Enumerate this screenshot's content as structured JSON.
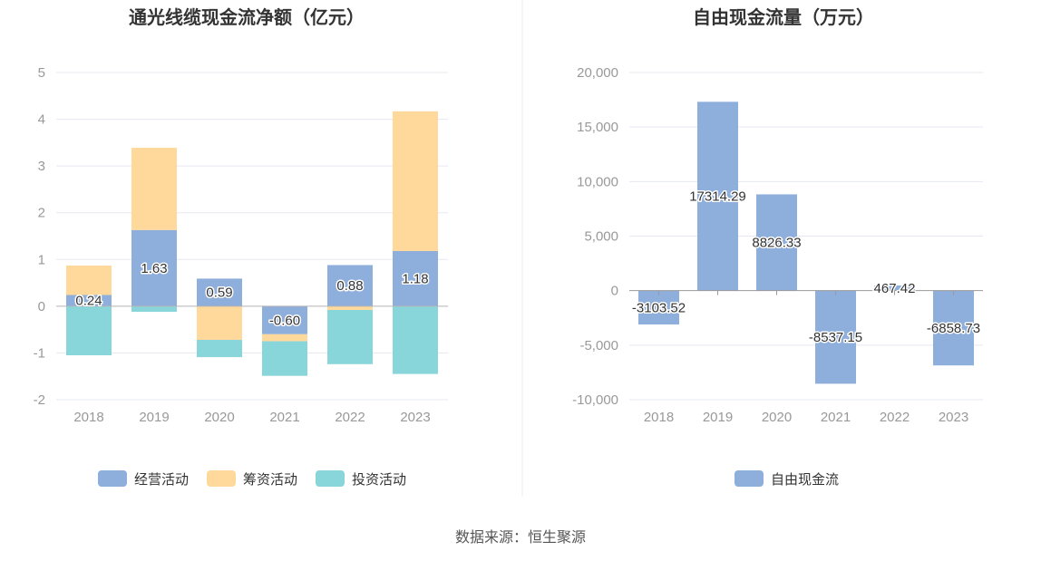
{
  "source": "数据来源：恒生聚源",
  "chart_data": [
    {
      "type": "bar",
      "stacked": true,
      "title": "通光线缆现金流净额（亿元）",
      "categories": [
        "2018",
        "2019",
        "2020",
        "2021",
        "2022",
        "2023"
      ],
      "ylim": [
        -2,
        5
      ],
      "yticks": [
        5,
        4,
        3,
        2,
        1,
        0,
        -1,
        -2
      ],
      "grid": true,
      "legend": "bottom",
      "series": [
        {
          "name": "经营活动",
          "color": "#8eaedb",
          "values": [
            0.24,
            1.63,
            0.59,
            -0.6,
            0.88,
            1.18
          ],
          "labels": [
            "0.24",
            "1.63",
            "0.59",
            "-0.60",
            "0.88",
            "1.18"
          ]
        },
        {
          "name": "筹资活动",
          "color": "#ffd99b",
          "values": [
            0.63,
            1.76,
            -0.72,
            -0.15,
            -0.08,
            2.99
          ]
        },
        {
          "name": "投资活动",
          "color": "#89d6da",
          "values": [
            -1.05,
            -0.12,
            -0.37,
            -0.74,
            -1.16,
            -1.45
          ]
        }
      ]
    },
    {
      "type": "bar",
      "title": "自由现金流量（万元）",
      "categories": [
        "2018",
        "2019",
        "2020",
        "2021",
        "2022",
        "2023"
      ],
      "ylim": [
        -10000,
        20000
      ],
      "yticks": [
        20000,
        15000,
        10000,
        5000,
        0,
        -5000,
        -10000
      ],
      "ytick_labels": [
        "20,000",
        "15,000",
        "10,000",
        "5,000",
        "0",
        "-5,000",
        "-10,000"
      ],
      "grid": true,
      "legend": "bottom",
      "series": [
        {
          "name": "自由现金流",
          "color": "#8eaedb",
          "values": [
            -3103.52,
            17314.29,
            8826.33,
            -8537.15,
            467.42,
            -6858.73
          ]
        }
      ]
    }
  ]
}
